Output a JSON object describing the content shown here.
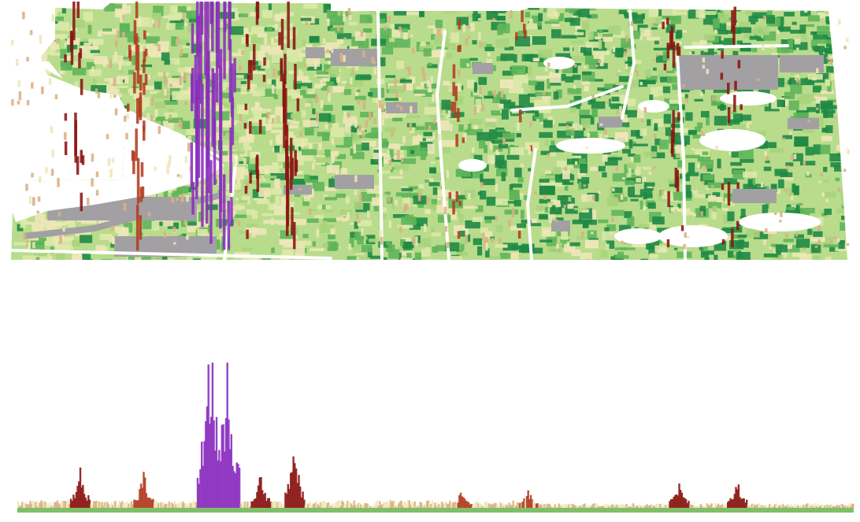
{
  "visualization": {
    "views": [
      "perspective-map",
      "side-elevation"
    ],
    "colors": {
      "background": "#ffffff",
      "water": "#ffffff",
      "roads": "#ffffff",
      "vacant": "#a2a0a3",
      "land_green_dark": "#1f8a45",
      "land_green": "#5fb55a",
      "land_green_light": "#a9d47c",
      "land_pale": "#dde9a8",
      "land_cream": "#eee7b8",
      "bar_tan": "#d8b183",
      "bar_orange": "#c98a5e",
      "bar_red": "#b03c20",
      "bar_dark_red": "#8a1512",
      "bar_purple": "#8a2dbe",
      "baseline": "#7fbf6a"
    },
    "color_scale": [
      "#eee7b8",
      "#d8b183",
      "#c98a5e",
      "#b03c20",
      "#8a1512",
      "#8a2dbe"
    ],
    "peaks": [
      {
        "id": "downtown",
        "x": 0.23,
        "height": 1.0,
        "color_level": 5
      },
      {
        "id": "downtown-east",
        "x": 0.25,
        "height": 0.85,
        "color_level": 5
      },
      {
        "id": "west-cluster",
        "x": 0.074,
        "height": 0.24,
        "color_level": 4
      },
      {
        "id": "mid-west",
        "x": 0.15,
        "height": 0.2,
        "color_level": 3
      },
      {
        "id": "near-east",
        "x": 0.33,
        "height": 0.36,
        "color_level": 4
      },
      {
        "id": "river-east",
        "x": 0.29,
        "height": 0.18,
        "color_level": 4
      },
      {
        "id": "mid-east-1",
        "x": 0.53,
        "height": 0.09,
        "color_level": 3
      },
      {
        "id": "mid-east-2",
        "x": 0.61,
        "height": 0.1,
        "color_level": 3
      },
      {
        "id": "east-1",
        "x": 0.79,
        "height": 0.15,
        "color_level": 4
      },
      {
        "id": "east-2",
        "x": 0.86,
        "height": 0.16,
        "color_level": 4
      }
    ]
  }
}
